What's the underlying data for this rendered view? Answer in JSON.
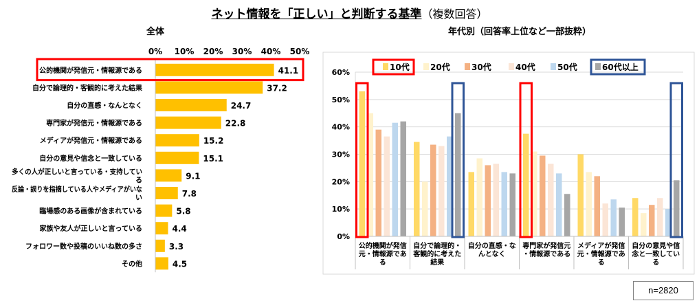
{
  "title": {
    "main": "ネット情報を「正しい」と判断する基準",
    "sub": "（複数回答）"
  },
  "note": "n=2820",
  "colors": {
    "overall_bar": "#ffc000",
    "highlight_red": "#ff0000",
    "highlight_blue": "#2f5597",
    "series": [
      "#ffd966",
      "#fff2cc",
      "#f4b183",
      "#fbe5d6",
      "#bdd7ee",
      "#a6a6a6"
    ]
  },
  "chart_data": [
    {
      "type": "bar",
      "orientation": "horizontal",
      "title": "全体",
      "categories": [
        "公的機関が発信元・情報源である",
        "自分で論理的・客観的に考えた結果",
        "自分の直感・なんとなく",
        "専門家が発信元・情報源である",
        "メディアが発信元・情報源である",
        "自分の意見や信念と一致している",
        "多くの人が正しいと言っている・支持している",
        "反論・誤りを指摘している人やメディアがいない",
        "臨場感のある画像が含まれている",
        "家族や友人が正しいと言っている",
        "フォロワー数や投稿のいいね数の多さ",
        "その他"
      ],
      "values": [
        41.1,
        37.2,
        24.7,
        22.8,
        15.2,
        15.1,
        9.1,
        7.8,
        5.8,
        4.4,
        3.3,
        4.5
      ],
      "value_labels": [
        "41.1",
        "37.2",
        "24.7",
        "22.8",
        "15.2",
        "15.1",
        "9.1",
        "7.8",
        "5.8",
        "4.4",
        "3.3",
        "4.5"
      ],
      "xlim": [
        0,
        50
      ],
      "x_ticks": [
        "0%",
        "10%",
        "20%",
        "30%",
        "40%",
        "50%"
      ],
      "highlighted_category_index": 0
    },
    {
      "type": "bar",
      "title": "年代別（回答率上位など一部抜粋）",
      "categories": [
        "公的機関が発信元・情報源である",
        "自分で論理的・客観的に考えた結果",
        "自分の直感・なんとなく",
        "専門家が発信元・情報源である",
        "メディアが発信元・情報源である",
        "自分の意見や信念と一致している"
      ],
      "series": [
        {
          "name": "10代",
          "values": [
            53,
            34.5,
            23.5,
            37.5,
            30,
            14
          ]
        },
        {
          "name": "20代",
          "values": [
            45,
            20,
            28.5,
            31,
            23.5,
            8.5
          ]
        },
        {
          "name": "30代",
          "values": [
            39,
            33.5,
            26,
            29.5,
            22,
            11.5
          ]
        },
        {
          "name": "40代",
          "values": [
            36.5,
            33,
            26.5,
            26.5,
            12,
            14
          ]
        },
        {
          "name": "50代",
          "values": [
            41.5,
            36.5,
            23.5,
            23,
            13.5,
            10
          ]
        },
        {
          "name": "60代以上",
          "values": [
            42,
            45,
            23,
            15.5,
            10.5,
            20.5
          ]
        }
      ],
      "ylim": [
        0,
        60
      ],
      "y_ticks": [
        "0%",
        "10%",
        "20%",
        "30%",
        "40%",
        "50%",
        "60%"
      ],
      "legend_position": "top",
      "highlighted_series": {
        "red": "10代",
        "blue": "60代以上"
      }
    }
  ]
}
